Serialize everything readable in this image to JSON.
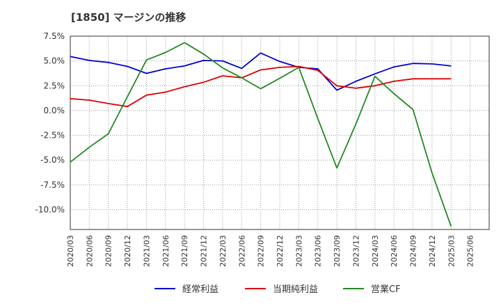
{
  "title": "[1850]  マージンの推移",
  "chart_data": {
    "type": "line",
    "title": "[1850]  マージンの推移",
    "xlabel": "",
    "ylabel": "",
    "x": [
      "2020/03",
      "2020/06",
      "2020/09",
      "2020/12",
      "2021/03",
      "2021/06",
      "2021/09",
      "2021/12",
      "2022/03",
      "2022/06",
      "2022/09",
      "2022/12",
      "2023/03",
      "2023/06",
      "2023/09",
      "2023/12",
      "2024/03",
      "2024/06",
      "2024/09",
      "2024/12",
      "2025/03"
    ],
    "x_ticks": [
      "2020/03",
      "2020/06",
      "2020/09",
      "2020/12",
      "2021/03",
      "2021/06",
      "2021/09",
      "2021/12",
      "2022/03",
      "2022/06",
      "2022/09",
      "2022/12",
      "2023/03",
      "2023/06",
      "2023/09",
      "2023/12",
      "2024/03",
      "2024/06",
      "2024/09",
      "2024/12",
      "2025/03",
      "2025/06"
    ],
    "ylim": [
      -12.0,
      7.5
    ],
    "y_ticks": [
      7.5,
      5.0,
      2.5,
      0.0,
      -2.5,
      -5.0,
      -7.5,
      -10.0
    ],
    "y_tick_labels": [
      "7.5%",
      "5.0%",
      "2.5%",
      "0.0%",
      "-2.5%",
      "-5.0%",
      "-7.5%",
      "-10.0%"
    ],
    "grid": true,
    "legend_position": "bottom",
    "series": [
      {
        "name": "経常利益",
        "color": "#0000cc",
        "values": [
          5.45,
          5.05,
          4.85,
          4.45,
          3.75,
          4.2,
          4.5,
          5.05,
          5.0,
          4.25,
          5.8,
          4.95,
          4.35,
          4.2,
          2.05,
          2.95,
          3.7,
          4.4,
          4.75,
          4.7,
          4.5
        ]
      },
      {
        "name": "当期純利益",
        "color": "#dd0000",
        "values": [
          1.2,
          1.05,
          0.7,
          0.4,
          1.55,
          1.85,
          2.4,
          2.85,
          3.5,
          3.3,
          4.1,
          4.35,
          4.45,
          4.05,
          2.5,
          2.25,
          2.5,
          2.95,
          3.2,
          3.2,
          3.2
        ]
      },
      {
        "name": "営業CF",
        "color": "#228822",
        "values": [
          -5.2,
          -3.7,
          -2.35,
          1.4,
          5.1,
          5.85,
          6.85,
          5.7,
          4.3,
          3.3,
          2.2,
          3.25,
          4.35,
          -0.8,
          -5.8,
          -1.35,
          3.45,
          1.7,
          0.1,
          -6.3,
          -11.7
        ]
      }
    ]
  }
}
